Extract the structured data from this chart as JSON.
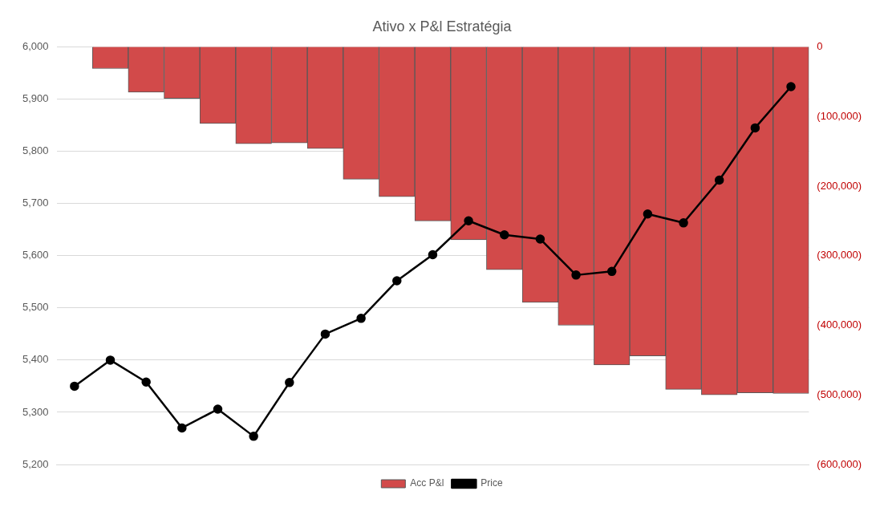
{
  "chart_data": {
    "type": "bar",
    "title": "Ativo x P&l Estratégia",
    "categories": [
      null,
      null,
      null,
      null,
      null,
      null,
      null,
      null,
      null,
      null,
      null,
      null,
      null,
      null,
      null,
      null,
      null,
      null,
      null,
      null,
      null
    ],
    "series": [
      {
        "name": "Acc P&l",
        "axis": "y2",
        "color": "#d24a4a",
        "values": [
          0,
          -31000,
          -65000,
          -74000,
          -110000,
          -139000,
          -138000,
          -146000,
          -190000,
          -215000,
          -250000,
          -277000,
          -320000,
          -367000,
          -400000,
          -457000,
          -444000,
          -492000,
          -500000,
          -497000,
          -498000
        ]
      },
      {
        "name": "Price",
        "type": "line",
        "color": "#000000",
        "marker": "circle",
        "values": [
          5350,
          5400,
          5358,
          5270,
          5306,
          5254,
          5357,
          5450,
          5480,
          5552,
          5602,
          5667,
          5640,
          5632,
          5563,
          5570,
          5680,
          5663,
          5745,
          5845,
          5924
        ]
      }
    ],
    "ylim": [
      5200,
      6000
    ],
    "yticks": [
      {
        "value": 5200,
        "label": "5,200"
      },
      {
        "value": 5300,
        "label": "5,300"
      },
      {
        "value": 5400,
        "label": "5,400"
      },
      {
        "value": 5500,
        "label": "5,500"
      },
      {
        "value": 5600,
        "label": "5,600"
      },
      {
        "value": 5700,
        "label": "5,700"
      },
      {
        "value": 5800,
        "label": "5,800"
      },
      {
        "value": 5900,
        "label": "5,900"
      },
      {
        "value": 6000,
        "label": "6,000"
      }
    ],
    "y2lim": [
      -600000,
      0
    ],
    "y2ticks": [
      {
        "value": -600000,
        "label": "(600,000)"
      },
      {
        "value": -500000,
        "label": "(500,000)"
      },
      {
        "value": -400000,
        "label": "(400,000)"
      },
      {
        "value": -300000,
        "label": "(300,000)"
      },
      {
        "value": -200000,
        "label": "(200,000)"
      },
      {
        "value": -100000,
        "label": "(100,000)"
      },
      0
    ],
    "tick_labels": "y",
    "grid": "y",
    "legend": "bottom"
  }
}
